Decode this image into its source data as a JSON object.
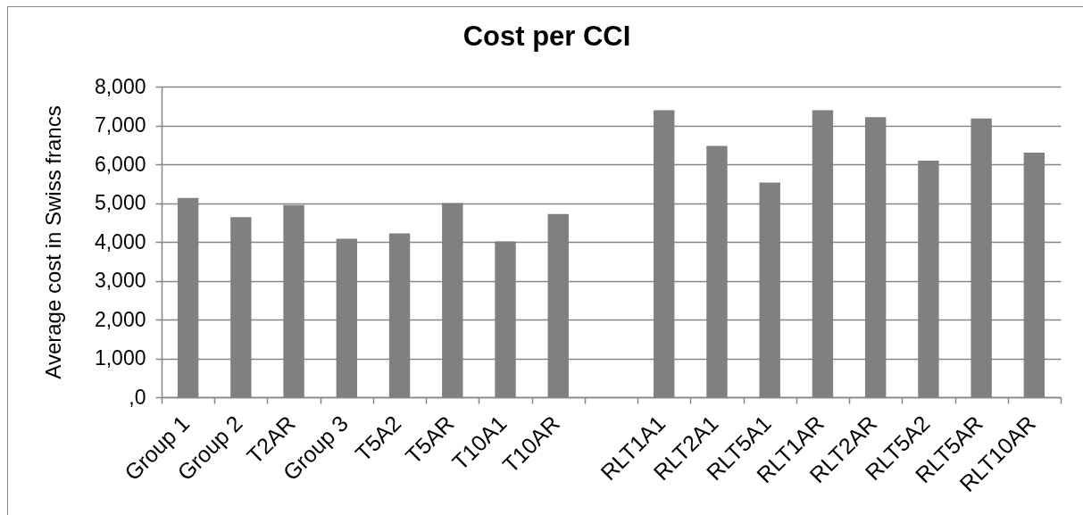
{
  "chart_data": {
    "type": "bar",
    "title": "Cost per CCI",
    "ylabel": "Average cost in Swiss francs",
    "categories": [
      "Group 1",
      "Group 2",
      "T2AR",
      "Group 3",
      "T5A2",
      "T5AR",
      "T10A1",
      "T10AR",
      null,
      "RLT1A1",
      "RLT2A1",
      "RLT5A1",
      "RLT1AR",
      "RLT2AR",
      "RLT5A2",
      "RLT5AR",
      "RLT10AR"
    ],
    "values": [
      5130,
      4640,
      4950,
      4080,
      4220,
      5000,
      4010,
      4720,
      null,
      7390,
      6470,
      5530,
      7390,
      7210,
      6090,
      7180,
      6300
    ],
    "color": "#808080",
    "ylim": [
      0,
      8000
    ],
    "yticks": [
      {
        "value": 0,
        "label": ",0"
      },
      {
        "value": 1000,
        "label": "1,000"
      },
      {
        "value": 2000,
        "label": "2,000"
      },
      {
        "value": 3000,
        "label": "3,000"
      },
      {
        "value": 4000,
        "label": "4,000"
      },
      {
        "value": 5000,
        "label": "5,000"
      },
      {
        "value": 6000,
        "label": "6,000"
      },
      {
        "value": 7000,
        "label": "7,000"
      },
      {
        "value": 8000,
        "label": "8,000"
      }
    ],
    "grid": "y"
  }
}
